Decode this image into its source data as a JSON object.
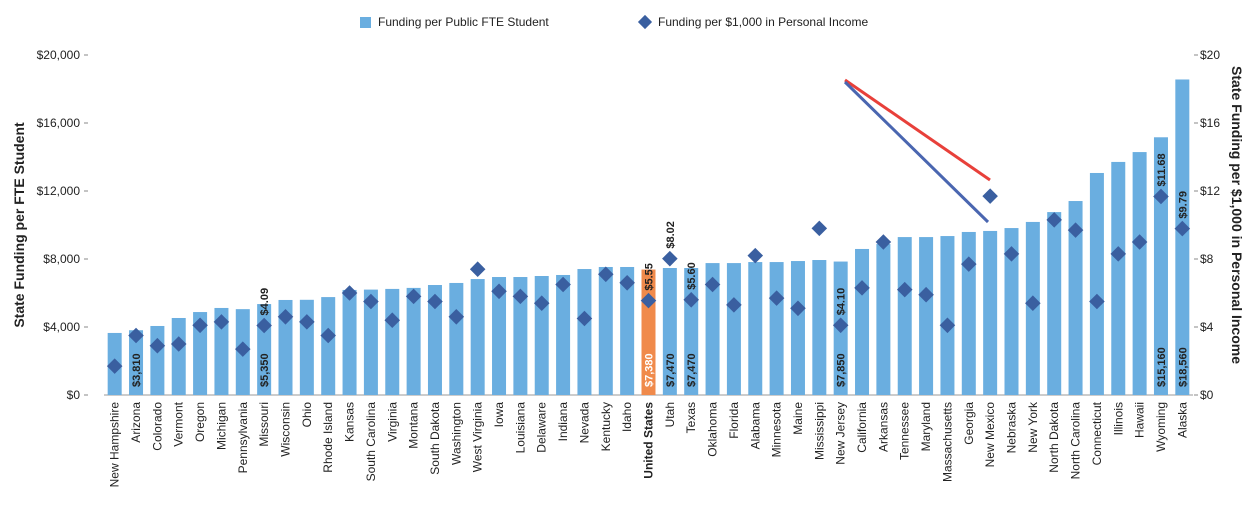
{
  "chart_data": {
    "type": "bar",
    "categories": [
      "New Hampshire",
      "Arizona",
      "Colorado",
      "Vermont",
      "Oregon",
      "Michigan",
      "Pennsylvania",
      "Missouri",
      "Wisconsin",
      "Ohio",
      "Rhode Island",
      "Kansas",
      "South Carolina",
      "Virginia",
      "Montana",
      "South Dakota",
      "Washington",
      "West Virginia",
      "Iowa",
      "Louisiana",
      "Delaware",
      "Indiana",
      "Nevada",
      "Kentucky",
      "Idaho",
      "United States",
      "Utah",
      "Texas",
      "Oklahoma",
      "Florida",
      "Alabama",
      "Minnesota",
      "Maine",
      "Mississippi",
      "New Jersey",
      "California",
      "Arkansas",
      "Tennessee",
      "Maryland",
      "Massachusetts",
      "Georgia",
      "New Mexico",
      "Nebraska",
      "New York",
      "North Dakota",
      "North Carolina",
      "Connecticut",
      "Illinois",
      "Hawaii",
      "Wyoming",
      "Alaska"
    ],
    "series": [
      {
        "name": "Funding per Public FTE Student",
        "type": "bar",
        "color": "#6aaee0",
        "highlight_color": "#f08a4b",
        "highlight": "United States",
        "values": [
          3650,
          3810,
          4060,
          4530,
          4880,
          5120,
          5050,
          5350,
          5590,
          5600,
          5760,
          6180,
          6200,
          6240,
          6300,
          6470,
          6590,
          6820,
          6940,
          6940,
          7000,
          7060,
          7410,
          7530,
          7530,
          7380,
          7470,
          7470,
          7760,
          7760,
          7820,
          7820,
          7880,
          7940,
          7850,
          8590,
          8880,
          9290,
          9290,
          9350,
          9590,
          9650,
          9820,
          10180,
          10760,
          11410,
          13060,
          13710,
          14290,
          15160,
          18560
        ],
        "value_labels": [
          null,
          "$3,810",
          null,
          null,
          null,
          null,
          null,
          "$5,350",
          null,
          null,
          null,
          null,
          null,
          null,
          null,
          null,
          null,
          null,
          null,
          null,
          null,
          null,
          null,
          null,
          null,
          "$7,380",
          "$7,470",
          "$7,470",
          null,
          null,
          null,
          null,
          null,
          null,
          "$7,850",
          null,
          null,
          null,
          null,
          null,
          null,
          null,
          null,
          null,
          null,
          null,
          null,
          null,
          null,
          "$15,160",
          "$18,560"
        ]
      },
      {
        "name": "Funding per $1,000 in Personal Income",
        "type": "scatter",
        "axis": "y2",
        "color": "#3a5fa0",
        "values": [
          1.7,
          3.5,
          2.9,
          3.0,
          4.1,
          4.3,
          2.7,
          4.09,
          4.6,
          4.3,
          3.5,
          6.0,
          5.5,
          4.4,
          5.8,
          5.5,
          4.6,
          7.4,
          6.1,
          5.8,
          5.4,
          6.5,
          4.5,
          7.1,
          6.6,
          5.55,
          8.02,
          5.6,
          6.5,
          5.3,
          8.2,
          5.7,
          5.1,
          9.8,
          4.1,
          6.3,
          9.0,
          6.2,
          5.9,
          4.1,
          7.7,
          11.7,
          8.3,
          5.4,
          10.3,
          9.7,
          5.5,
          8.3,
          9.0,
          11.68,
          9.79
        ],
        "value_labels": [
          null,
          null,
          null,
          null,
          null,
          null,
          null,
          "$4.09",
          null,
          null,
          null,
          null,
          null,
          null,
          null,
          null,
          null,
          null,
          null,
          null,
          null,
          null,
          null,
          null,
          null,
          "$5.55",
          "$8.02",
          "$5.60",
          null,
          null,
          null,
          null,
          null,
          null,
          "$4.10",
          null,
          null,
          null,
          null,
          null,
          null,
          null,
          null,
          null,
          null,
          null,
          null,
          null,
          null,
          "$11.68",
          "$9.79"
        ]
      }
    ],
    "y_label": "State Funding per FTE Student",
    "y2_label": "State Funding per $1,000 in Personal Income",
    "ylim": [
      0,
      20000
    ],
    "yticks": [
      {
        "value": 0,
        "label": "$0"
      },
      {
        "value": 4000,
        "label": "$4,000"
      },
      {
        "value": 8000,
        "label": "$8,000"
      },
      {
        "value": 12000,
        "label": "$12,000"
      },
      {
        "value": 16000,
        "label": "$16,000"
      },
      {
        "value": 20000,
        "label": "$20,000"
      }
    ],
    "y2lim": [
      0,
      20
    ],
    "y2ticks": [
      {
        "value": 0,
        "label": "$0"
      },
      {
        "value": 4,
        "label": "$4"
      },
      {
        "value": 8,
        "label": "$8"
      },
      {
        "value": 12,
        "label": "$12"
      },
      {
        "value": 16,
        "label": "$16"
      },
      {
        "value": 20,
        "label": "$20"
      }
    ],
    "legend": "top"
  }
}
